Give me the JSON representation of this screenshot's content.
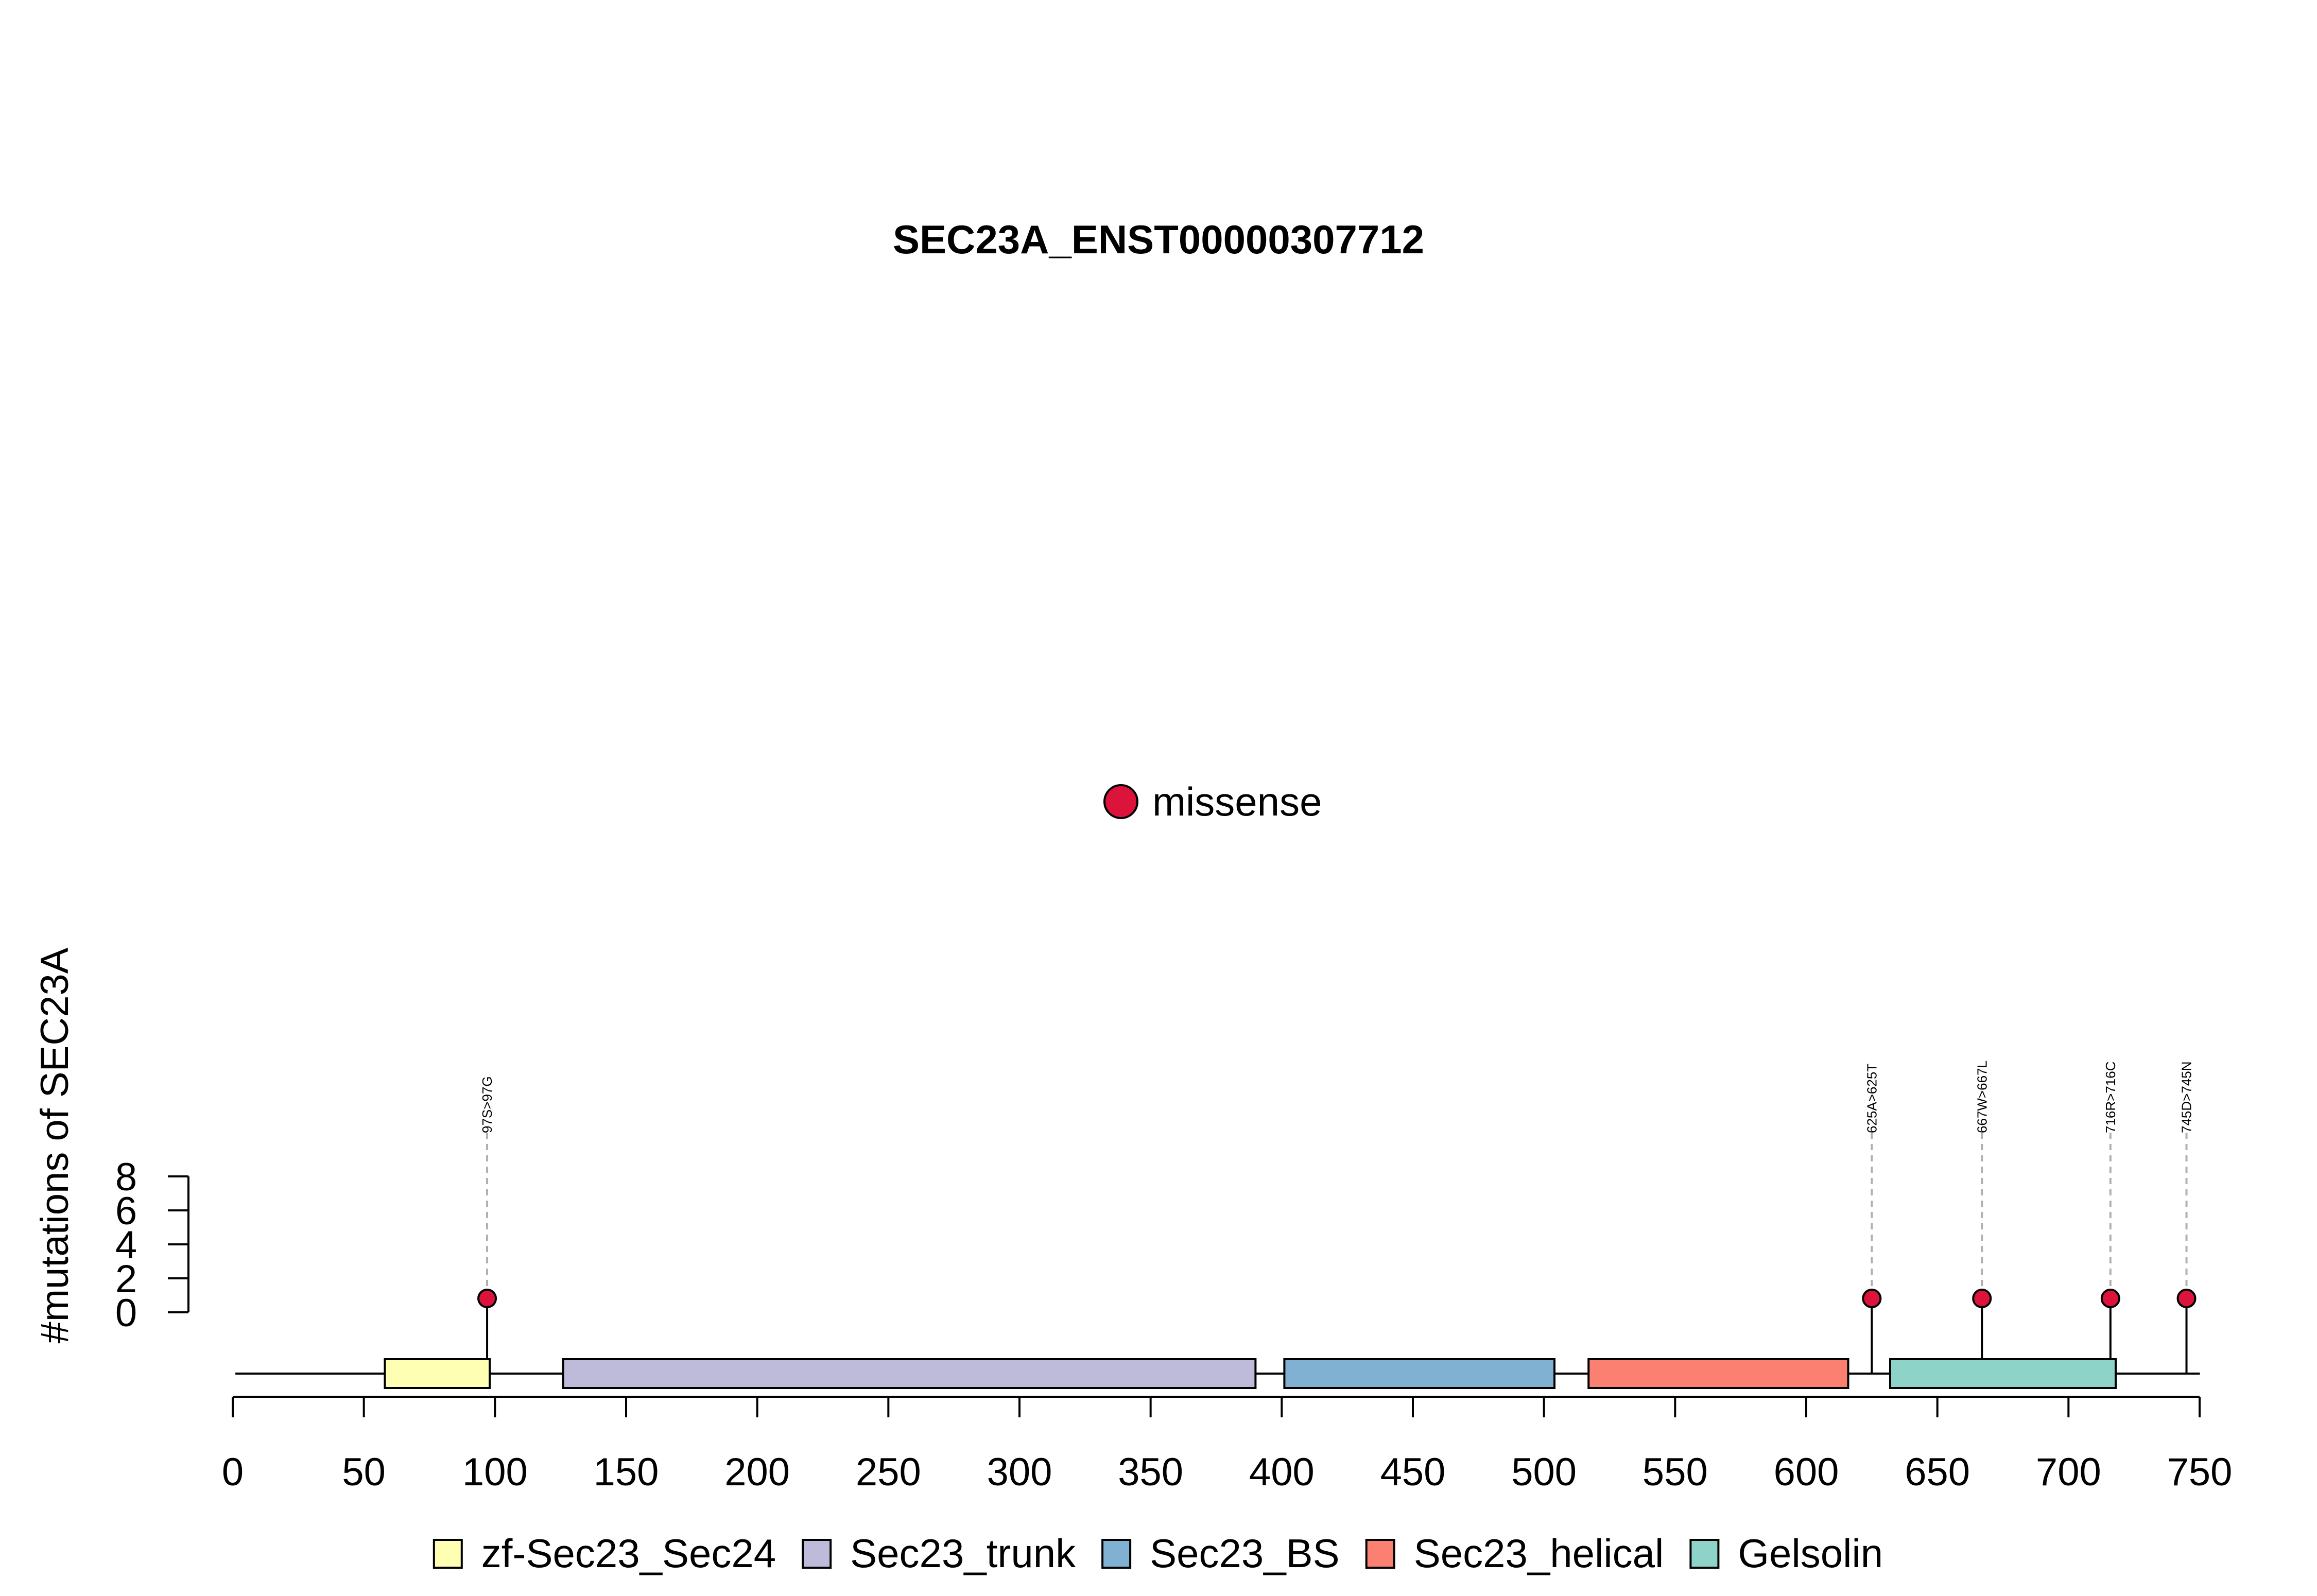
{
  "chart_data": {
    "type": "lollipop",
    "title": "SEC23A_ENST00000307712",
    "ylabel": "#mutations of SEC23A",
    "xlabel": "",
    "xlim": [
      0,
      750
    ],
    "x_ticks": [
      0,
      50,
      100,
      150,
      200,
      250,
      300,
      350,
      400,
      450,
      500,
      550,
      600,
      650,
      700,
      750
    ],
    "ylim": [
      0,
      8
    ],
    "y_ticks": [
      0,
      2,
      4,
      6,
      8
    ],
    "protein_length": 745,
    "legend_mutation": {
      "label": "missense",
      "color": "#DC143C"
    },
    "domains": [
      {
        "name": "zf-Sec23_Sec24",
        "start": 58,
        "end": 98,
        "color": "#FFFFB3"
      },
      {
        "name": "Sec23_trunk",
        "start": 126,
        "end": 390,
        "color": "#BEBADA"
      },
      {
        "name": "Sec23_BS",
        "start": 401,
        "end": 504,
        "color": "#80B1D3"
      },
      {
        "name": "Sec23_helical",
        "start": 517,
        "end": 616,
        "color": "#FB8072"
      },
      {
        "name": "Gelsolin",
        "start": 632,
        "end": 718,
        "color": "#8DD3C7"
      }
    ],
    "mutations": [
      {
        "position": 97,
        "label": "97S>97G",
        "count": 1,
        "type": "missense"
      },
      {
        "position": 625,
        "label": "625A>625T",
        "count": 1,
        "type": "missense"
      },
      {
        "position": 667,
        "label": "667W>667L",
        "count": 1,
        "type": "missense"
      },
      {
        "position": 716,
        "label": "716R>716C",
        "count": 1,
        "type": "missense"
      },
      {
        "position": 745,
        "label": "745D>745N",
        "count": 1,
        "type": "missense"
      }
    ]
  }
}
